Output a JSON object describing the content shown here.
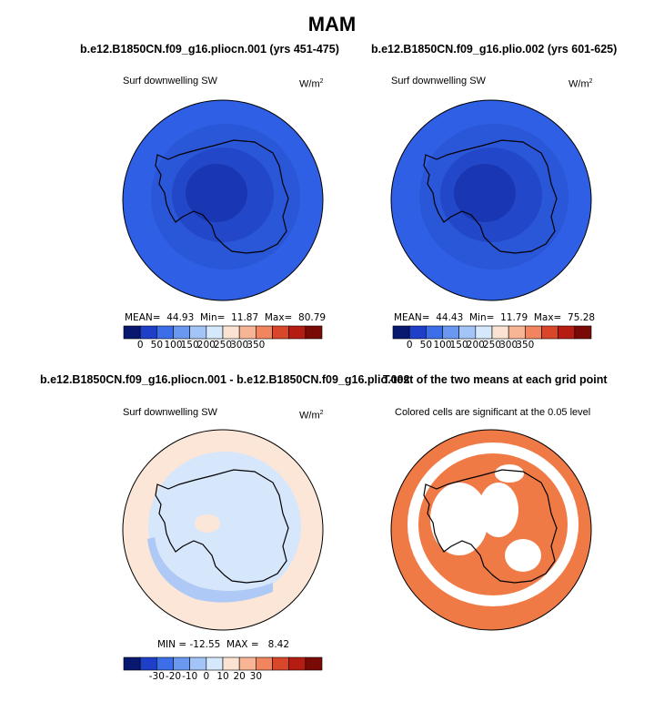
{
  "page_title": "MAM",
  "panels": [
    {
      "title": "b.e12.B1850CN.f09_g16.pliocn.001 (yrs 451-475)",
      "variable": "Surf downwelling SW",
      "unit": "W/m",
      "unit_sup": "2",
      "stats": {
        "mean_label": "MEAN=",
        "mean": "44.93",
        "min_label": "Min=",
        "min": "11.87",
        "max_label": "Max=",
        "max": "80.79"
      }
    },
    {
      "title": "b.e12.B1850CN.f09_g16.plio.002 (yrs 601-625)",
      "variable": "Surf downwelling SW",
      "unit": "W/m",
      "unit_sup": "2",
      "stats": {
        "mean_label": "MEAN=",
        "mean": "44.43",
        "min_label": "Min=",
        "min": "11.79",
        "max_label": "Max=",
        "max": "75.28"
      }
    },
    {
      "title": "b.e12.B1850CN.f09_g16.pliocn.001 - b.e12.B1850CN.f09_g16.plio.002",
      "variable": "Surf downwelling SW",
      "unit": "W/m",
      "unit_sup": "2",
      "stats": {
        "min_label": "MIN =",
        "min": "-12.55",
        "max_label": "MAX =",
        "max": "8.42"
      }
    },
    {
      "title": "T-test of the two means at each grid point",
      "variable": "Colored cells are significant at the 0.05 level"
    }
  ],
  "colorbars": {
    "absolute": {
      "colors": [
        "#08186e",
        "#1f3fc9",
        "#3b6ee8",
        "#6a98f0",
        "#a2c4f6",
        "#d6e8fb",
        "#fbe3d3",
        "#f7b596",
        "#f08560",
        "#d9472a",
        "#b51c12",
        "#7a0a06"
      ],
      "tick_labels": [
        "0",
        "50",
        "100",
        "150",
        "200",
        "250",
        "300",
        "350"
      ]
    },
    "difference": {
      "colors": [
        "#08186e",
        "#1f3fc9",
        "#3b6ee8",
        "#6a98f0",
        "#a2c4f6",
        "#d6e8fb",
        "#fbe3d3",
        "#f7b596",
        "#f08560",
        "#d9472a",
        "#b51c12",
        "#7a0a06"
      ],
      "tick_labels": [
        "-30",
        "-20",
        "-10",
        "0",
        "10",
        "20",
        "30"
      ]
    }
  },
  "map_colors": {
    "outer_ring": "#2f5fe4",
    "mid_ring": "#2a56d8",
    "inner": "#2347c9",
    "core": "#1a37b3",
    "diff_background": "#fbe6d8",
    "diff_blue": "#d6e6fb",
    "diff_mid_blue": "#aec9f5",
    "ttest_color": "#f07a45"
  },
  "chart_data": [
    {
      "type": "heatmap",
      "title": "b.e12.B1850CN.f09_g16.pliocn.001 (yrs 451-475)",
      "variable": "Surf downwelling SW",
      "unit": "W/m2",
      "mean": 44.93,
      "min": 11.87,
      "max": 80.79,
      "colorbar_range": [
        0,
        350
      ]
    },
    {
      "type": "heatmap",
      "title": "b.e12.B1850CN.f09_g16.plio.002 (yrs 601-625)",
      "variable": "Surf downwelling SW",
      "unit": "W/m2",
      "mean": 44.43,
      "min": 11.79,
      "max": 75.28,
      "colorbar_range": [
        0,
        350
      ]
    },
    {
      "type": "heatmap",
      "title": "b.e12.B1850CN.f09_g16.pliocn.001 - b.e12.B1850CN.f09_g16.plio.002",
      "variable": "Surf downwelling SW",
      "unit": "W/m2",
      "min": -12.55,
      "max": 8.42,
      "colorbar_range": [
        -30,
        30
      ]
    },
    {
      "type": "heatmap",
      "title": "T-test of the two means at each grid point",
      "annotation": "Colored cells are significant at the 0.05 level",
      "significance_level": 0.05
    }
  ]
}
